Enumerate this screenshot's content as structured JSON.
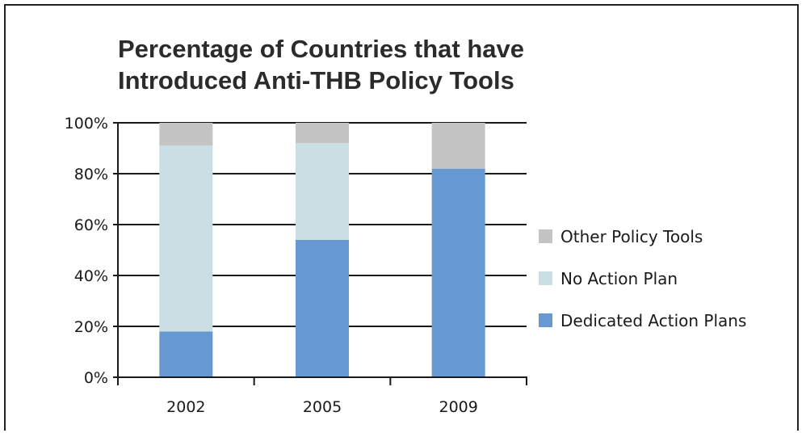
{
  "chart_data": {
    "type": "bar",
    "stacked": true,
    "percent": true,
    "title_lines": [
      "Percentage of Countries that have",
      "Introduced Anti-THB Policy Tools"
    ],
    "categories": [
      "2002",
      "2005",
      "2009"
    ],
    "series": [
      {
        "name": "Dedicated Action Plans",
        "values": [
          18,
          54,
          82
        ],
        "color": "#6699d1"
      },
      {
        "name": "No Action Plan",
        "values": [
          73,
          38,
          0
        ],
        "color": "#c9dfe3"
      },
      {
        "name": "Other Policy Tools",
        "values": [
          9,
          8,
          18
        ],
        "color": "#c4c4c4"
      }
    ],
    "legend_order": [
      "Other Policy Tools",
      "No Action Plan",
      "Dedicated Action Plans"
    ],
    "legend_position": "right",
    "ylim": [
      0,
      100
    ],
    "yticks": [
      0,
      20,
      40,
      60,
      80,
      100
    ],
    "ytick_labels": [
      "0%",
      "20%",
      "40%",
      "60%",
      "80%",
      "100%"
    ],
    "grid": true,
    "xlabel": "",
    "ylabel": ""
  }
}
